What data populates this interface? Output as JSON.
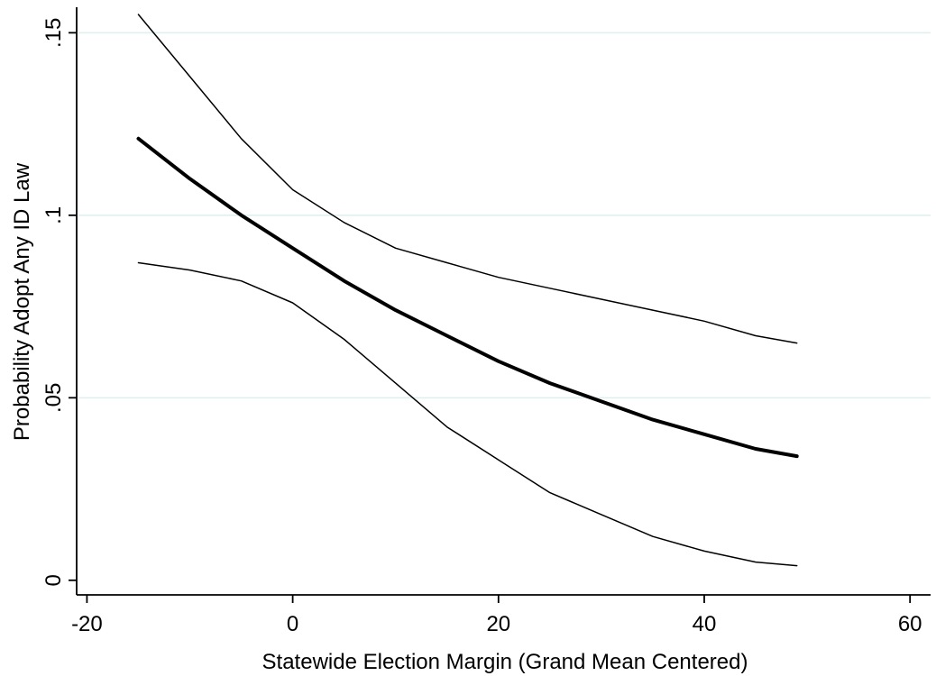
{
  "chart_data": {
    "type": "line",
    "xlabel": "Statewide Election Margin (Grand Mean Centered)",
    "ylabel": "Probability Adopt Any ID Law",
    "xlim": [
      -21,
      62
    ],
    "ylim": [
      -0.004,
      0.157
    ],
    "xticks": [
      -20,
      0,
      20,
      40,
      60
    ],
    "xtick_labels": [
      "-20",
      "0",
      "20",
      "40",
      "60"
    ],
    "yticks": [
      0,
      0.05,
      0.1,
      0.15
    ],
    "ytick_labels": [
      "0",
      ".05",
      ".1",
      ".15"
    ],
    "grid": "horizontal",
    "legend": "none",
    "x": [
      -15,
      -10,
      -5,
      0,
      5,
      10,
      15,
      20,
      25,
      30,
      35,
      40,
      45,
      49
    ],
    "series": [
      {
        "role": "upper-ci",
        "color": "#000000",
        "values": [
          0.155,
          0.138,
          0.121,
          0.107,
          0.098,
          0.091,
          0.087,
          0.083,
          0.08,
          0.077,
          0.074,
          0.071,
          0.067,
          0.065
        ]
      },
      {
        "role": "estimate",
        "color": "#000000",
        "values": [
          0.121,
          0.11,
          0.1,
          0.091,
          0.082,
          0.074,
          0.067,
          0.06,
          0.054,
          0.049,
          0.044,
          0.04,
          0.036,
          0.034
        ]
      },
      {
        "role": "lower-ci",
        "color": "#000000",
        "values": [
          0.087,
          0.085,
          0.082,
          0.076,
          0.066,
          0.054,
          0.042,
          0.033,
          0.024,
          0.018,
          0.012,
          0.008,
          0.005,
          0.004
        ]
      }
    ]
  }
}
